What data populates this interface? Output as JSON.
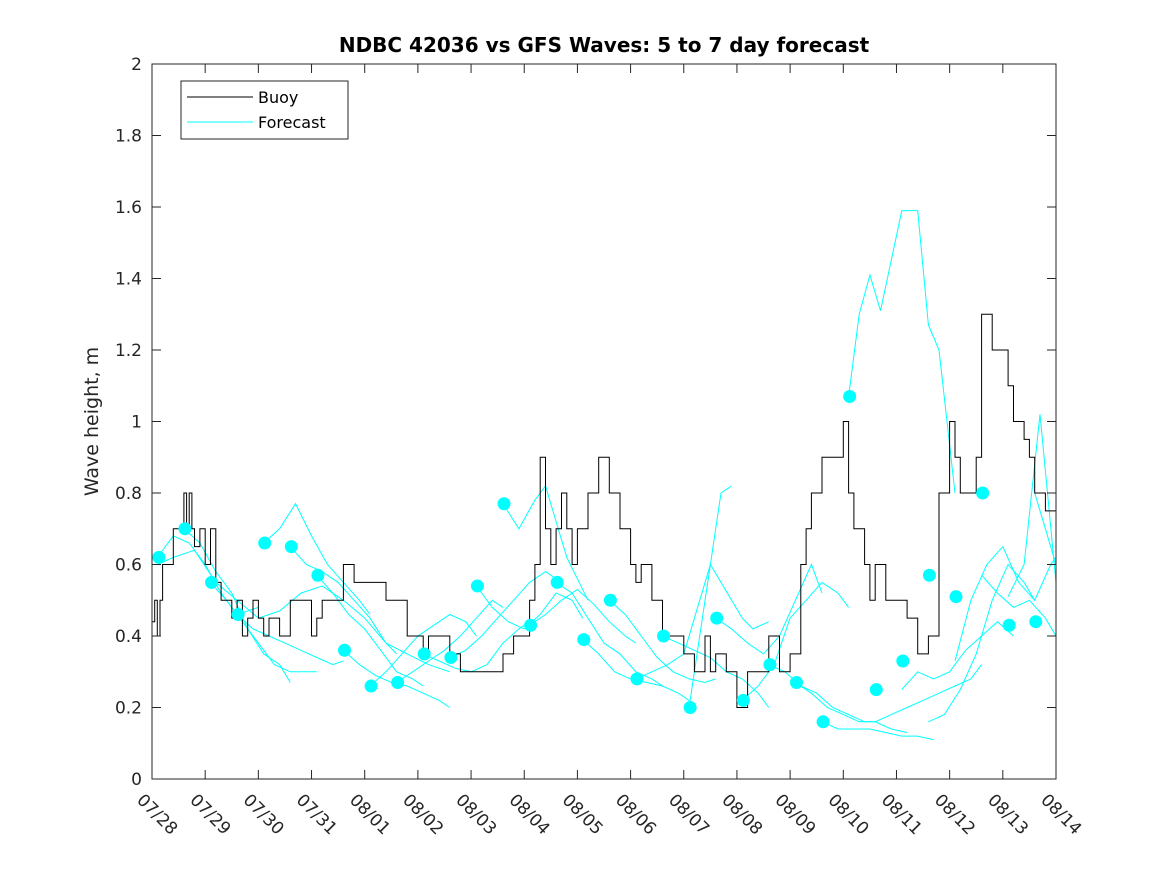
{
  "chart_data": {
    "type": "line",
    "title": "NDBC 42036 vs GFS Waves: 5 to 7 day forecast",
    "xlabel": "",
    "ylabel": "Wave height, m",
    "xlim": [
      0,
      17
    ],
    "ylim": [
      0,
      2
    ],
    "x_tick_labels": [
      "07/28",
      "07/29",
      "07/30",
      "07/31",
      "08/01",
      "08/02",
      "08/03",
      "08/04",
      "08/05",
      "08/06",
      "08/07",
      "08/08",
      "08/09",
      "08/10",
      "08/11",
      "08/12",
      "08/13",
      "08/14"
    ],
    "y_ticks": [
      0,
      0.2,
      0.4,
      0.6,
      0.8,
      1,
      1.2,
      1.4,
      1.6,
      1.8,
      2
    ],
    "y_tick_labels": [
      "0",
      "0.2",
      "0.4",
      "0.6",
      "0.8",
      "1",
      "1.2",
      "1.4",
      "1.6",
      "1.8",
      "2"
    ],
    "legend": {
      "position": "top-left",
      "entries": [
        {
          "label": "Buoy",
          "color": "#000000"
        },
        {
          "label": "Forecast",
          "color": "#00ffff"
        }
      ]
    },
    "colors": {
      "buoy": "#000000",
      "forecast": "#00ffff",
      "marker": "#00ffff"
    },
    "buoy": {
      "name": "Buoy",
      "x": [
        0,
        0.05,
        0.1,
        0.15,
        0.2,
        0.3,
        0.4,
        0.5,
        0.6,
        0.65,
        0.7,
        0.75,
        0.8,
        0.9,
        1.0,
        1.1,
        1.2,
        1.3,
        1.4,
        1.5,
        1.6,
        1.7,
        1.8,
        1.9,
        2.0,
        2.1,
        2.2,
        2.4,
        2.6,
        2.8,
        3.0,
        3.1,
        3.2,
        3.4,
        3.6,
        3.8,
        4.0,
        4.2,
        4.4,
        4.6,
        4.8,
        5.0,
        5.1,
        5.2,
        5.4,
        5.6,
        5.8,
        6.0,
        6.2,
        6.4,
        6.6,
        6.8,
        7.0,
        7.1,
        7.2,
        7.3,
        7.4,
        7.5,
        7.6,
        7.7,
        7.8,
        7.9,
        8.0,
        8.2,
        8.4,
        8.6,
        8.8,
        9.0,
        9.1,
        9.2,
        9.3,
        9.4,
        9.6,
        9.8,
        10.0,
        10.1,
        10.2,
        10.4,
        10.5,
        10.6,
        10.8,
        11.0,
        11.2,
        11.4,
        11.6,
        11.8,
        12.0,
        12.2,
        12.3,
        12.4,
        12.6,
        12.8,
        13.0,
        13.1,
        13.2,
        13.4,
        13.5,
        13.6,
        13.8,
        14.0,
        14.2,
        14.4,
        14.6,
        14.8,
        15.0,
        15.1,
        15.2,
        15.4,
        15.5,
        15.6,
        15.8,
        16.0,
        16.1,
        16.2,
        16.4,
        16.5,
        16.6,
        16.8,
        17.0
      ],
      "y": [
        0.44,
        0.5,
        0.4,
        0.5,
        0.6,
        0.6,
        0.7,
        0.7,
        0.8,
        0.7,
        0.8,
        0.7,
        0.65,
        0.7,
        0.6,
        0.7,
        0.55,
        0.5,
        0.5,
        0.45,
        0.5,
        0.4,
        0.45,
        0.5,
        0.45,
        0.4,
        0.45,
        0.4,
        0.5,
        0.5,
        0.4,
        0.45,
        0.5,
        0.5,
        0.6,
        0.55,
        0.55,
        0.55,
        0.5,
        0.5,
        0.4,
        0.4,
        0.35,
        0.4,
        0.4,
        0.35,
        0.3,
        0.3,
        0.3,
        0.3,
        0.35,
        0.4,
        0.4,
        0.5,
        0.6,
        0.9,
        0.7,
        0.6,
        0.7,
        0.8,
        0.7,
        0.6,
        0.7,
        0.8,
        0.9,
        0.8,
        0.7,
        0.6,
        0.55,
        0.6,
        0.6,
        0.5,
        0.4,
        0.4,
        0.35,
        0.35,
        0.3,
        0.4,
        0.3,
        0.35,
        0.3,
        0.2,
        0.3,
        0.3,
        0.4,
        0.3,
        0.35,
        0.6,
        0.7,
        0.8,
        0.9,
        0.9,
        1.0,
        0.8,
        0.7,
        0.6,
        0.5,
        0.6,
        0.5,
        0.5,
        0.45,
        0.35,
        0.4,
        0.8,
        1.0,
        0.9,
        0.8,
        0.8,
        0.9,
        1.3,
        1.2,
        1.2,
        1.1,
        1.0,
        0.95,
        0.9,
        0.8,
        0.75,
        0.7
      ],
      "_note_x": "days since 07/28 on the date axis"
    },
    "forecast_runs": [
      {
        "x": [
          0.1,
          0.4,
          0.7,
          1.0,
          1.3,
          1.6,
          2.0
        ],
        "y": [
          0.62,
          0.68,
          0.66,
          0.6,
          0.52,
          0.46,
          0.48
        ]
      },
      {
        "x": [
          0.6,
          0.9,
          1.2,
          1.5,
          1.8,
          2.1,
          2.4,
          2.6
        ],
        "y": [
          0.7,
          0.66,
          0.58,
          0.52,
          0.42,
          0.35,
          0.32,
          0.27
        ]
      },
      {
        "x": [
          1.1,
          1.4,
          1.7,
          2.0,
          2.3,
          2.6,
          2.9,
          3.1
        ],
        "y": [
          0.55,
          0.5,
          0.44,
          0.38,
          0.32,
          0.3,
          0.3,
          0.3
        ]
      },
      {
        "x": [
          1.6,
          1.9,
          2.2,
          2.5,
          2.8,
          3.1,
          3.4,
          3.6
        ],
        "y": [
          0.46,
          0.42,
          0.4,
          0.38,
          0.36,
          0.34,
          0.32,
          0.33
        ]
      },
      {
        "x": [
          2.1,
          2.4,
          2.7,
          3.0,
          3.3,
          3.6,
          3.9,
          4.1
        ],
        "y": [
          0.66,
          0.7,
          0.77,
          0.68,
          0.6,
          0.55,
          0.5,
          0.46
        ]
      },
      {
        "x": [
          2.6,
          2.9,
          3.2,
          3.5,
          3.8,
          4.1,
          4.4,
          4.6
        ],
        "y": [
          0.65,
          0.6,
          0.58,
          0.55,
          0.5,
          0.45,
          0.38,
          0.35
        ]
      },
      {
        "x": [
          3.1,
          3.4,
          3.7,
          4.0,
          4.3,
          4.6,
          4.9,
          5.1
        ],
        "y": [
          0.57,
          0.52,
          0.46,
          0.42,
          0.36,
          0.3,
          0.28,
          0.26
        ]
      },
      {
        "x": [
          3.6,
          3.9,
          4.2,
          4.5,
          4.8,
          5.1,
          5.4,
          5.6
        ],
        "y": [
          0.36,
          0.32,
          0.29,
          0.27,
          0.26,
          0.24,
          0.22,
          0.2
        ]
      },
      {
        "x": [
          4.1,
          4.4,
          4.7,
          5.0,
          5.3,
          5.6,
          5.9,
          6.1
        ],
        "y": [
          0.26,
          0.3,
          0.35,
          0.4,
          0.43,
          0.46,
          0.44,
          0.4
        ]
      },
      {
        "x": [
          4.6,
          4.9,
          5.2,
          5.5,
          5.8,
          6.1,
          6.4,
          6.6
        ],
        "y": [
          0.27,
          0.3,
          0.33,
          0.36,
          0.4,
          0.45,
          0.5,
          0.48
        ]
      },
      {
        "x": [
          5.1,
          5.4,
          5.7,
          6.0,
          6.3,
          6.6,
          6.9,
          7.1
        ],
        "y": [
          0.35,
          0.33,
          0.31,
          0.3,
          0.32,
          0.38,
          0.42,
          0.44
        ]
      },
      {
        "x": [
          5.6,
          5.9,
          6.2,
          6.5,
          6.8,
          7.1,
          7.4,
          7.6
        ],
        "y": [
          0.34,
          0.36,
          0.4,
          0.45,
          0.5,
          0.55,
          0.58,
          0.56
        ]
      },
      {
        "x": [
          6.1,
          6.4,
          6.7,
          7.0,
          7.3,
          7.6,
          7.9,
          8.1
        ],
        "y": [
          0.54,
          0.48,
          0.44,
          0.42,
          0.46,
          0.52,
          0.5,
          0.45
        ]
      },
      {
        "x": [
          6.6,
          6.9,
          7.2,
          7.4,
          7.6,
          7.8,
          8.0,
          8.2
        ],
        "y": [
          0.77,
          0.7,
          0.78,
          0.82,
          0.72,
          0.62,
          0.56,
          0.5
        ]
      },
      {
        "x": [
          7.1,
          7.4,
          7.7,
          8.0,
          8.3,
          8.6,
          8.9,
          9.1
        ],
        "y": [
          0.43,
          0.46,
          0.5,
          0.53,
          0.49,
          0.44,
          0.4,
          0.38
        ]
      },
      {
        "x": [
          7.6,
          7.9,
          8.2,
          8.5,
          8.8,
          9.1,
          9.4,
          9.6
        ],
        "y": [
          0.55,
          0.52,
          0.45,
          0.38,
          0.35,
          0.3,
          0.28,
          0.26
        ]
      },
      {
        "x": [
          8.1,
          8.4,
          8.7,
          9.0,
          9.3,
          9.6,
          9.9,
          10.1
        ],
        "y": [
          0.39,
          0.35,
          0.3,
          0.28,
          0.27,
          0.26,
          0.24,
          0.22
        ]
      },
      {
        "x": [
          8.6,
          8.9,
          9.2,
          9.5,
          9.8,
          10.1,
          10.4,
          10.6
        ],
        "y": [
          0.5,
          0.46,
          0.4,
          0.34,
          0.3,
          0.28,
          0.27,
          0.28
        ]
      },
      {
        "x": [
          9.1,
          9.4,
          9.7,
          10.0,
          10.3,
          10.5,
          10.7,
          10.9
        ],
        "y": [
          0.28,
          0.3,
          0.32,
          0.35,
          0.5,
          0.6,
          0.8,
          0.82
        ]
      },
      {
        "x": [
          9.6,
          9.9,
          10.2,
          10.5,
          10.8,
          11.1,
          11.4,
          11.6
        ],
        "y": [
          0.4,
          0.38,
          0.36,
          0.34,
          0.3,
          0.28,
          0.24,
          0.2
        ]
      },
      {
        "x": [
          10.1,
          10.3,
          10.5,
          10.7,
          10.9,
          11.1,
          11.3,
          11.6
        ],
        "y": [
          0.2,
          0.4,
          0.6,
          0.55,
          0.5,
          0.45,
          0.42,
          0.44
        ]
      },
      {
        "x": [
          10.6,
          10.9,
          11.2,
          11.5,
          11.8,
          12.1,
          12.4,
          12.6
        ],
        "y": [
          0.45,
          0.42,
          0.38,
          0.35,
          0.4,
          0.5,
          0.6,
          0.52
        ]
      },
      {
        "x": [
          11.1,
          11.4,
          11.7,
          12.0,
          12.3,
          12.6,
          12.9,
          13.1
        ],
        "y": [
          0.22,
          0.26,
          0.32,
          0.45,
          0.5,
          0.55,
          0.52,
          0.48
        ]
      },
      {
        "x": [
          11.6,
          11.9,
          12.2,
          12.5,
          12.8,
          13.1,
          13.4,
          13.6
        ],
        "y": [
          0.32,
          0.3,
          0.26,
          0.24,
          0.2,
          0.18,
          0.16,
          0.16
        ]
      },
      {
        "x": [
          12.1,
          12.4,
          12.7,
          13.0,
          13.3,
          13.6,
          13.9,
          14.2
        ],
        "y": [
          0.27,
          0.24,
          0.2,
          0.18,
          0.16,
          0.16,
          0.14,
          0.13
        ]
      },
      {
        "x": [
          12.6,
          12.9,
          13.2,
          13.5,
          13.8,
          14.1,
          14.4,
          14.7
        ],
        "y": [
          0.16,
          0.14,
          0.14,
          0.14,
          0.13,
          0.12,
          0.12,
          0.11
        ]
      },
      {
        "x": [
          13.1,
          13.3,
          13.5,
          13.7,
          13.9,
          14.1,
          14.4,
          14.6,
          14.8,
          15.1
        ],
        "y": [
          1.07,
          1.3,
          1.41,
          1.31,
          1.45,
          1.59,
          1.59,
          1.27,
          1.2,
          0.8
        ]
      },
      {
        "x": [
          13.6,
          13.9,
          14.2,
          14.5,
          14.8,
          15.1,
          15.4,
          15.6
        ],
        "y": [
          0.16,
          0.18,
          0.2,
          0.22,
          0.24,
          0.26,
          0.28,
          0.32
        ]
      },
      {
        "x": [
          14.1,
          14.4,
          14.7,
          15.0,
          15.3,
          15.6,
          15.9,
          16.2
        ],
        "y": [
          0.25,
          0.3,
          0.28,
          0.3,
          0.36,
          0.4,
          0.44,
          0.4
        ]
      },
      {
        "x": [
          14.6,
          14.9,
          15.2,
          15.5,
          15.8,
          16.1,
          16.4,
          16.6
        ],
        "y": [
          0.16,
          0.18,
          0.25,
          0.35,
          0.5,
          0.6,
          0.55,
          0.5
        ]
      },
      {
        "x": [
          15.1,
          15.4,
          15.7,
          16.0,
          16.3,
          16.6,
          16.9,
          17.0
        ],
        "y": [
          0.33,
          0.5,
          0.6,
          0.65,
          0.55,
          0.5,
          0.6,
          0.62
        ]
      },
      {
        "x": [
          15.6,
          15.9,
          16.2,
          16.5,
          16.8,
          17.0
        ],
        "y": [
          0.57,
          0.52,
          0.48,
          0.5,
          0.45,
          0.4
        ]
      },
      {
        "x": [
          16.1,
          16.4,
          16.7,
          17.0
        ],
        "y": [
          0.51,
          0.6,
          1.02,
          0.55
        ]
      },
      {
        "x": [
          16.6,
          16.8,
          17.0
        ],
        "y": [
          0.8,
          0.7,
          0.6
        ]
      },
      {
        "x": [
          0.1,
          0.4,
          0.8,
          1.2,
          1.6,
          2.0,
          2.4,
          2.8,
          3.2,
          3.6,
          4.0,
          4.4,
          4.8,
          5.2,
          5.6
        ],
        "y": [
          0.6,
          0.62,
          0.64,
          0.55,
          0.5,
          0.45,
          0.47,
          0.52,
          0.54,
          0.5,
          0.45,
          0.38,
          0.35,
          0.32,
          0.3
        ]
      }
    ],
    "markers": {
      "x": [
        0.13,
        0.62,
        1.12,
        1.62,
        2.12,
        2.62,
        3.12,
        3.62,
        4.12,
        4.62,
        5.12,
        5.62,
        6.12,
        6.62,
        7.12,
        7.62,
        8.12,
        8.62,
        9.12,
        9.62,
        10.12,
        10.62,
        11.12,
        11.62,
        12.12,
        12.62,
        13.12,
        13.62,
        14.12,
        14.62,
        15.12,
        15.62,
        16.12,
        16.62
      ],
      "y": [
        0.62,
        0.7,
        0.55,
        0.46,
        0.66,
        0.65,
        0.57,
        0.36,
        0.26,
        0.27,
        0.35,
        0.34,
        0.54,
        0.77,
        0.43,
        0.55,
        0.39,
        0.5,
        0.28,
        0.4,
        0.2,
        0.45,
        0.22,
        0.32,
        0.27,
        0.16,
        1.07,
        0.25,
        0.33,
        0.57,
        0.51,
        0.8,
        0.43,
        0.44
      ]
    },
    "grid": false
  }
}
